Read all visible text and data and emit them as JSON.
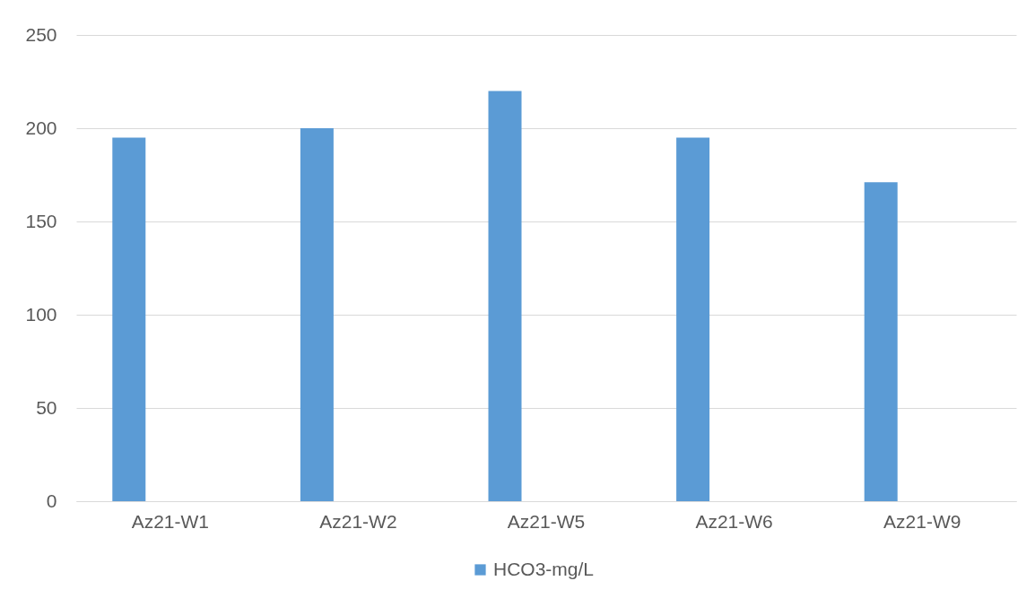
{
  "chart_data": {
    "type": "bar",
    "categories": [
      "Az21-W1",
      "Az21-W2",
      "Az21-W5",
      "Az21-W6",
      "Az21-W9"
    ],
    "series": [
      {
        "name": "HCO3-mg/L",
        "color": "#5b9bd5",
        "values": [
          195,
          200,
          220,
          195,
          171
        ]
      }
    ],
    "ylim": [
      0,
      250
    ],
    "yticks": [
      0,
      50,
      100,
      150,
      200,
      250
    ],
    "grid": "y",
    "legend": "bottom"
  }
}
